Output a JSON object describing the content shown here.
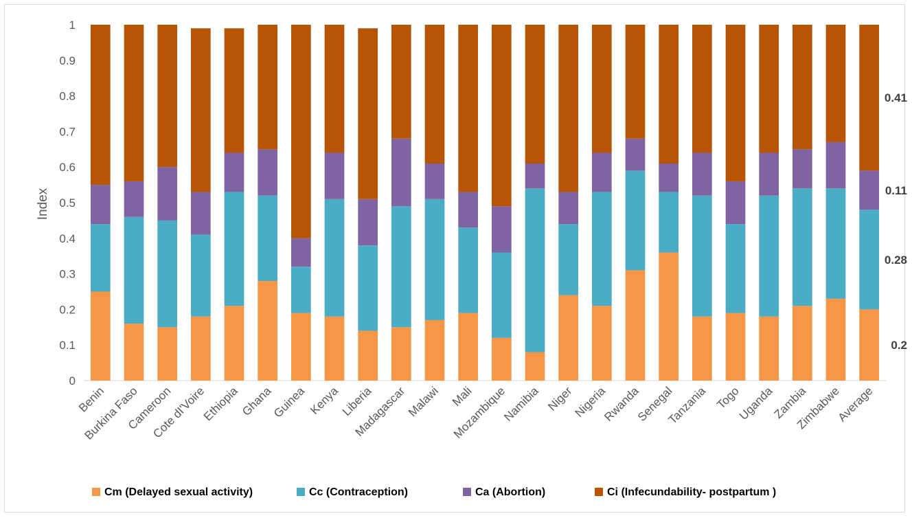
{
  "chart_data": {
    "type": "bar",
    "stacked": true,
    "ylabel": "Index",
    "ylim": [
      0,
      1
    ],
    "yticks": [
      "0",
      "0.1",
      "0.2",
      "0.3",
      "0.4",
      "0.5",
      "0.6",
      "0.7",
      "0.8",
      "0.9",
      "1"
    ],
    "grid": false,
    "legend_position": "bottom",
    "categories": [
      "Benin",
      "Burkina Faso",
      "Cameroon",
      "Cote dI'Voire",
      "Ethiopia",
      "Ghana",
      "Guinea",
      "Kenya",
      "Liberia",
      "Madagascar",
      "Malawi",
      "Mali",
      "Mozambique",
      "Namibia",
      "Niger",
      "Nigeria",
      "Rwanda",
      "Senegal",
      "Tanzania",
      "Togo",
      "Uganda",
      "Zambia",
      "Zimbabwe",
      "Average"
    ],
    "series": [
      {
        "name": "Cm (Delayed sexual activity)",
        "color": "#F79646",
        "values": [
          0.25,
          0.16,
          0.15,
          0.18,
          0.21,
          0.28,
          0.19,
          0.18,
          0.14,
          0.15,
          0.17,
          0.19,
          0.12,
          0.08,
          0.24,
          0.21,
          0.31,
          0.36,
          0.18,
          0.19,
          0.18,
          0.21,
          0.23,
          0.2
        ]
      },
      {
        "name": "Cc (Contraception)",
        "color": "#4BACC6",
        "values": [
          0.19,
          0.3,
          0.3,
          0.23,
          0.32,
          0.24,
          0.13,
          0.33,
          0.24,
          0.34,
          0.34,
          0.24,
          0.24,
          0.46,
          0.2,
          0.32,
          0.28,
          0.17,
          0.34,
          0.25,
          0.34,
          0.33,
          0.31,
          0.28
        ]
      },
      {
        "name": "Ca (Abortion)",
        "color": "#8064A2",
        "values": [
          0.11,
          0.1,
          0.15,
          0.12,
          0.11,
          0.13,
          0.08,
          0.13,
          0.13,
          0.19,
          0.1,
          0.1,
          0.13,
          0.07,
          0.09,
          0.11,
          0.09,
          0.08,
          0.12,
          0.12,
          0.12,
          0.11,
          0.13,
          0.11
        ]
      },
      {
        "name": "Ci (Infecundability- postpartum )",
        "color": "#B85504",
        "values": [
          0.45,
          0.44,
          0.4,
          0.46,
          0.35,
          0.35,
          0.6,
          0.36,
          0.48,
          0.32,
          0.39,
          0.47,
          0.51,
          0.39,
          0.47,
          0.36,
          0.32,
          0.39,
          0.36,
          0.44,
          0.36,
          0.35,
          0.33,
          0.41
        ]
      }
    ],
    "annotations": [
      {
        "text": "0.2",
        "series": 0
      },
      {
        "text": "0.28",
        "series": 1
      },
      {
        "text": "0.11",
        "series": 2
      },
      {
        "text": "0.41",
        "series": 3
      }
    ]
  }
}
